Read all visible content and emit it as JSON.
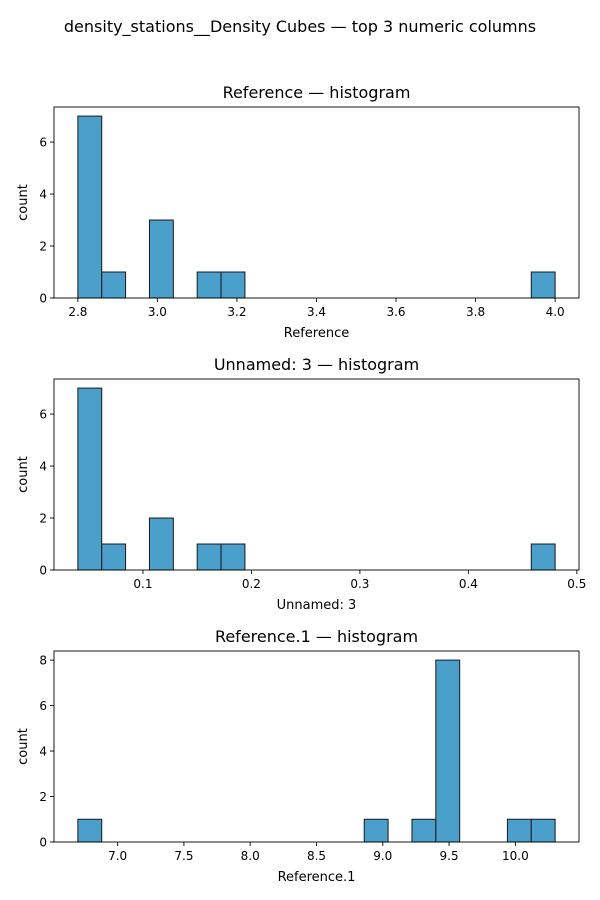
{
  "figure": {
    "suptitle": "density_stations__Density Cubes — top 3 numeric columns"
  },
  "chart_data": [
    {
      "type": "bar",
      "title": "Reference — histogram",
      "xlabel": "Reference",
      "ylabel": "count",
      "xlim": [
        2.74,
        4.06
      ],
      "ylim": [
        0,
        7.35
      ],
      "xticks": [
        2.8,
        3.0,
        3.2,
        3.4,
        3.6,
        3.8,
        4.0
      ],
      "xtick_labels": [
        "2.8",
        "3.0",
        "3.2",
        "3.4",
        "3.6",
        "3.8",
        "4.0"
      ],
      "yticks": [
        0,
        2,
        4,
        6
      ],
      "ytick_labels": [
        "0",
        "2",
        "4",
        "6"
      ],
      "bin_start": 2.8,
      "bin_width": 0.06,
      "counts": [
        7,
        1,
        0,
        3,
        0,
        1,
        1,
        0,
        0,
        0,
        0,
        0,
        0,
        0,
        0,
        0,
        0,
        0,
        0,
        1
      ],
      "bar_color": "#4a9fcb",
      "edge_color": "#1a1a1a",
      "grid": false
    },
    {
      "type": "bar",
      "title": "Unnamed: 3 — histogram",
      "xlabel": "Unnamed: 3",
      "ylabel": "count",
      "xlim": [
        0.018,
        0.502
      ],
      "ylim": [
        0,
        7.35
      ],
      "xticks": [
        0.1,
        0.2,
        0.3,
        0.4,
        0.5
      ],
      "xtick_labels": [
        "0.1",
        "0.2",
        "0.3",
        "0.4",
        "0.5"
      ],
      "yticks": [
        0,
        2,
        4,
        6
      ],
      "ytick_labels": [
        "0",
        "2",
        "4",
        "6"
      ],
      "bin_start": 0.04,
      "bin_width": 0.022,
      "counts": [
        7,
        1,
        0,
        2,
        0,
        1,
        1,
        0,
        0,
        0,
        0,
        0,
        0,
        0,
        0,
        0,
        0,
        0,
        0,
        1
      ],
      "bar_color": "#4a9fcb",
      "edge_color": "#1a1a1a",
      "grid": false
    },
    {
      "type": "bar",
      "title": "Reference.1 — histogram",
      "xlabel": "Reference.1",
      "ylabel": "count",
      "xlim": [
        6.52,
        10.48
      ],
      "ylim": [
        0,
        8.4
      ],
      "xticks": [
        7.0,
        7.5,
        8.0,
        8.5,
        9.0,
        9.5,
        10.0
      ],
      "xtick_labels": [
        "7.0",
        "7.5",
        "8.0",
        "8.5",
        "9.0",
        "9.5",
        "10.0"
      ],
      "yticks": [
        0,
        2,
        4,
        6,
        8
      ],
      "ytick_labels": [
        "0",
        "2",
        "4",
        "6",
        "8"
      ],
      "bin_start": 6.7,
      "bin_width": 0.18,
      "counts": [
        1,
        0,
        0,
        0,
        0,
        0,
        0,
        0,
        0,
        0,
        0,
        0,
        1,
        0,
        1,
        8,
        0,
        0,
        1,
        1
      ],
      "bar_color": "#4a9fcb",
      "edge_color": "#1a1a1a",
      "grid": false
    }
  ]
}
